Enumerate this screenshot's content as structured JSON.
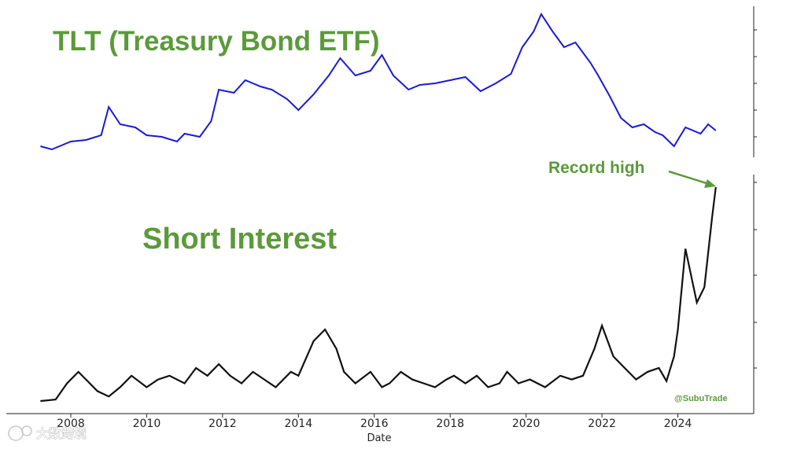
{
  "chart_data": [
    {
      "type": "line",
      "title": "TLT (Treasury Bond ETF)",
      "color": "#1a1ad6",
      "series": [
        {
          "x": [
            2007.2,
            2007.5,
            2008.0,
            2008.4,
            2008.8,
            2009.0,
            2009.3,
            2009.7,
            2010.0,
            2010.4,
            2010.8,
            2011.0,
            2011.4,
            2011.7,
            2011.9,
            2012.3,
            2012.6,
            2013.0,
            2013.3,
            2013.7,
            2014.0,
            2014.4,
            2014.8,
            2015.1,
            2015.5,
            2015.9,
            2016.2,
            2016.5,
            2016.9,
            2017.2,
            2017.6,
            2018.0,
            2018.4,
            2018.8,
            2019.2,
            2019.6,
            2019.9,
            2020.2,
            2020.4,
            2020.7,
            2021.0,
            2021.3,
            2021.7,
            2021.9,
            2022.2,
            2022.5,
            2022.8,
            2023.1,
            2023.4,
            2023.6,
            2023.9,
            2024.2,
            2024.6,
            2024.8,
            2025.0
          ],
          "y": [
            92,
            90,
            95,
            96,
            99,
            117,
            106,
            104,
            99,
            98,
            95,
            100,
            98,
            108,
            128,
            126,
            134,
            130,
            128,
            122,
            115,
            125,
            137,
            148,
            137,
            140,
            150,
            137,
            128,
            131,
            132,
            134,
            136,
            127,
            132,
            138,
            155,
            165,
            176,
            165,
            155,
            158,
            145,
            137,
            124,
            110,
            104,
            106,
            101,
            99,
            92,
            104,
            100,
            106,
            102
          ]
        }
      ]
    },
    {
      "type": "line",
      "title": "Short Interest",
      "color": "#111111",
      "annotations": [
        {
          "text": "Record high",
          "x": 2025.0
        }
      ],
      "credit": "@SubuTrade",
      "xlabel": "Date",
      "xlim": [
        2006.3,
        2026.0
      ],
      "xticks": [
        "2008",
        "2010",
        "2012",
        "2014",
        "2016",
        "2018",
        "2020",
        "2022",
        "2024"
      ],
      "series": [
        {
          "x": [
            2007.2,
            2007.6,
            2007.9,
            2008.2,
            2008.4,
            2008.7,
            2009.0,
            2009.3,
            2009.6,
            2010.0,
            2010.3,
            2010.6,
            2011.0,
            2011.3,
            2011.6,
            2011.9,
            2012.2,
            2012.5,
            2012.8,
            2013.1,
            2013.4,
            2013.8,
            2014.0,
            2014.4,
            2014.7,
            2015.0,
            2015.2,
            2015.5,
            2015.9,
            2016.2,
            2016.4,
            2016.7,
            2017.0,
            2017.3,
            2017.6,
            2017.9,
            2018.1,
            2018.4,
            2018.7,
            2019.0,
            2019.3,
            2019.5,
            2019.8,
            2020.1,
            2020.5,
            2020.9,
            2021.2,
            2021.5,
            2021.8,
            2022.0,
            2022.3,
            2022.6,
            2022.9,
            2023.2,
            2023.5,
            2023.7,
            2023.9,
            2024.0,
            2024.2,
            2024.5,
            2024.7,
            2024.9,
            2025.0
          ],
          "y": [
            2,
            4,
            25,
            40,
            30,
            15,
            8,
            20,
            35,
            20,
            30,
            35,
            25,
            45,
            35,
            50,
            35,
            25,
            40,
            30,
            20,
            40,
            35,
            80,
            95,
            70,
            40,
            25,
            40,
            20,
            25,
            40,
            30,
            25,
            20,
            30,
            35,
            25,
            35,
            20,
            25,
            40,
            25,
            30,
            20,
            35,
            30,
            35,
            70,
            100,
            60,
            45,
            30,
            40,
            45,
            28,
            60,
            95,
            200,
            130,
            150,
            240,
            280
          ]
        }
      ]
    }
  ],
  "watermark": {
    "text": "大数跨境"
  }
}
